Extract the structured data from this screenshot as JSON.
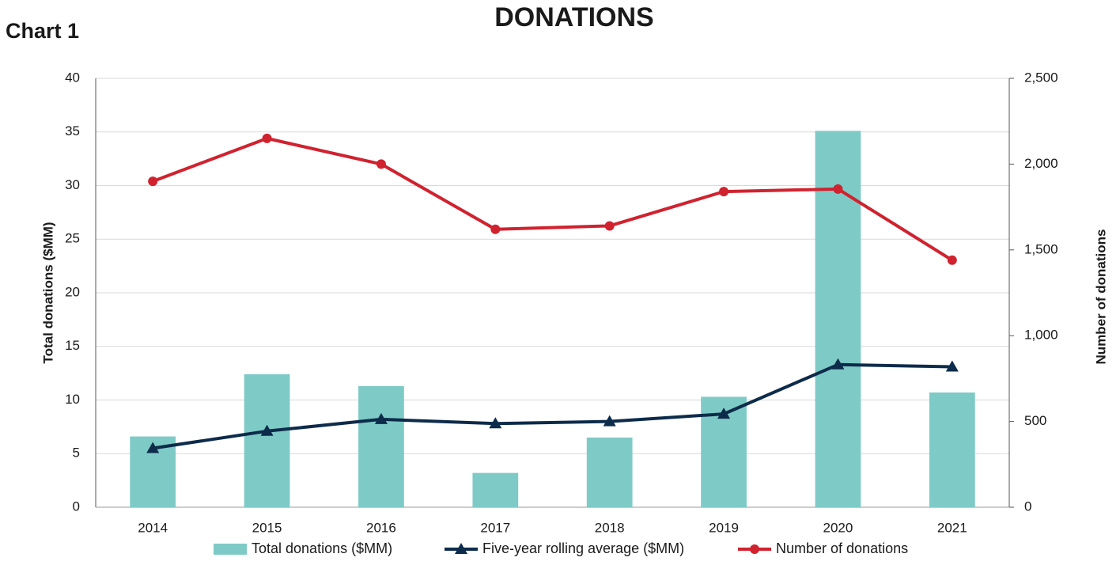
{
  "chart_data": {
    "type": "combo",
    "subtitle": "Chart 1",
    "title": "DONATIONS",
    "y_label": "Total donations ($MM)",
    "y2_label": "Number of donations",
    "categories": [
      "2014",
      "2015",
      "2016",
      "2017",
      "2018",
      "2019",
      "2020",
      "2021"
    ],
    "series": [
      {
        "name": "Total donations ($MM)",
        "type": "bar",
        "color": "#7ecac6",
        "values": [
          6.6,
          12.4,
          11.3,
          3.2,
          6.5,
          10.3,
          35.1,
          10.7
        ]
      },
      {
        "name": "Five-year rolling average ($MM)",
        "type": "line",
        "marker": "triangle",
        "color": "#0d2b4a",
        "values": [
          5.5,
          7.1,
          8.2,
          7.8,
          8.0,
          8.7,
          13.3,
          13.1
        ]
      },
      {
        "name": "Number of donations",
        "type": "line",
        "marker": "circle",
        "axis": "y2",
        "color": "#d0222f",
        "values": [
          1900,
          2150,
          2000,
          1620,
          1640,
          1840,
          1855,
          1440
        ]
      }
    ],
    "ylim": [
      0,
      40
    ],
    "yticks": [
      0,
      5,
      10,
      15,
      20,
      25,
      30,
      35,
      40
    ],
    "y2lim": [
      0,
      2500
    ],
    "y2ticks": [
      0,
      {
        "value": 500,
        "label": "500"
      },
      {
        "value": 1000,
        "label": "1,000"
      },
      {
        "value": 1500,
        "label": "1,500"
      },
      {
        "value": 2000,
        "label": "2,000"
      },
      {
        "value": 2500,
        "label": "2,500"
      }
    ],
    "grid": true,
    "legend": "bottom"
  }
}
